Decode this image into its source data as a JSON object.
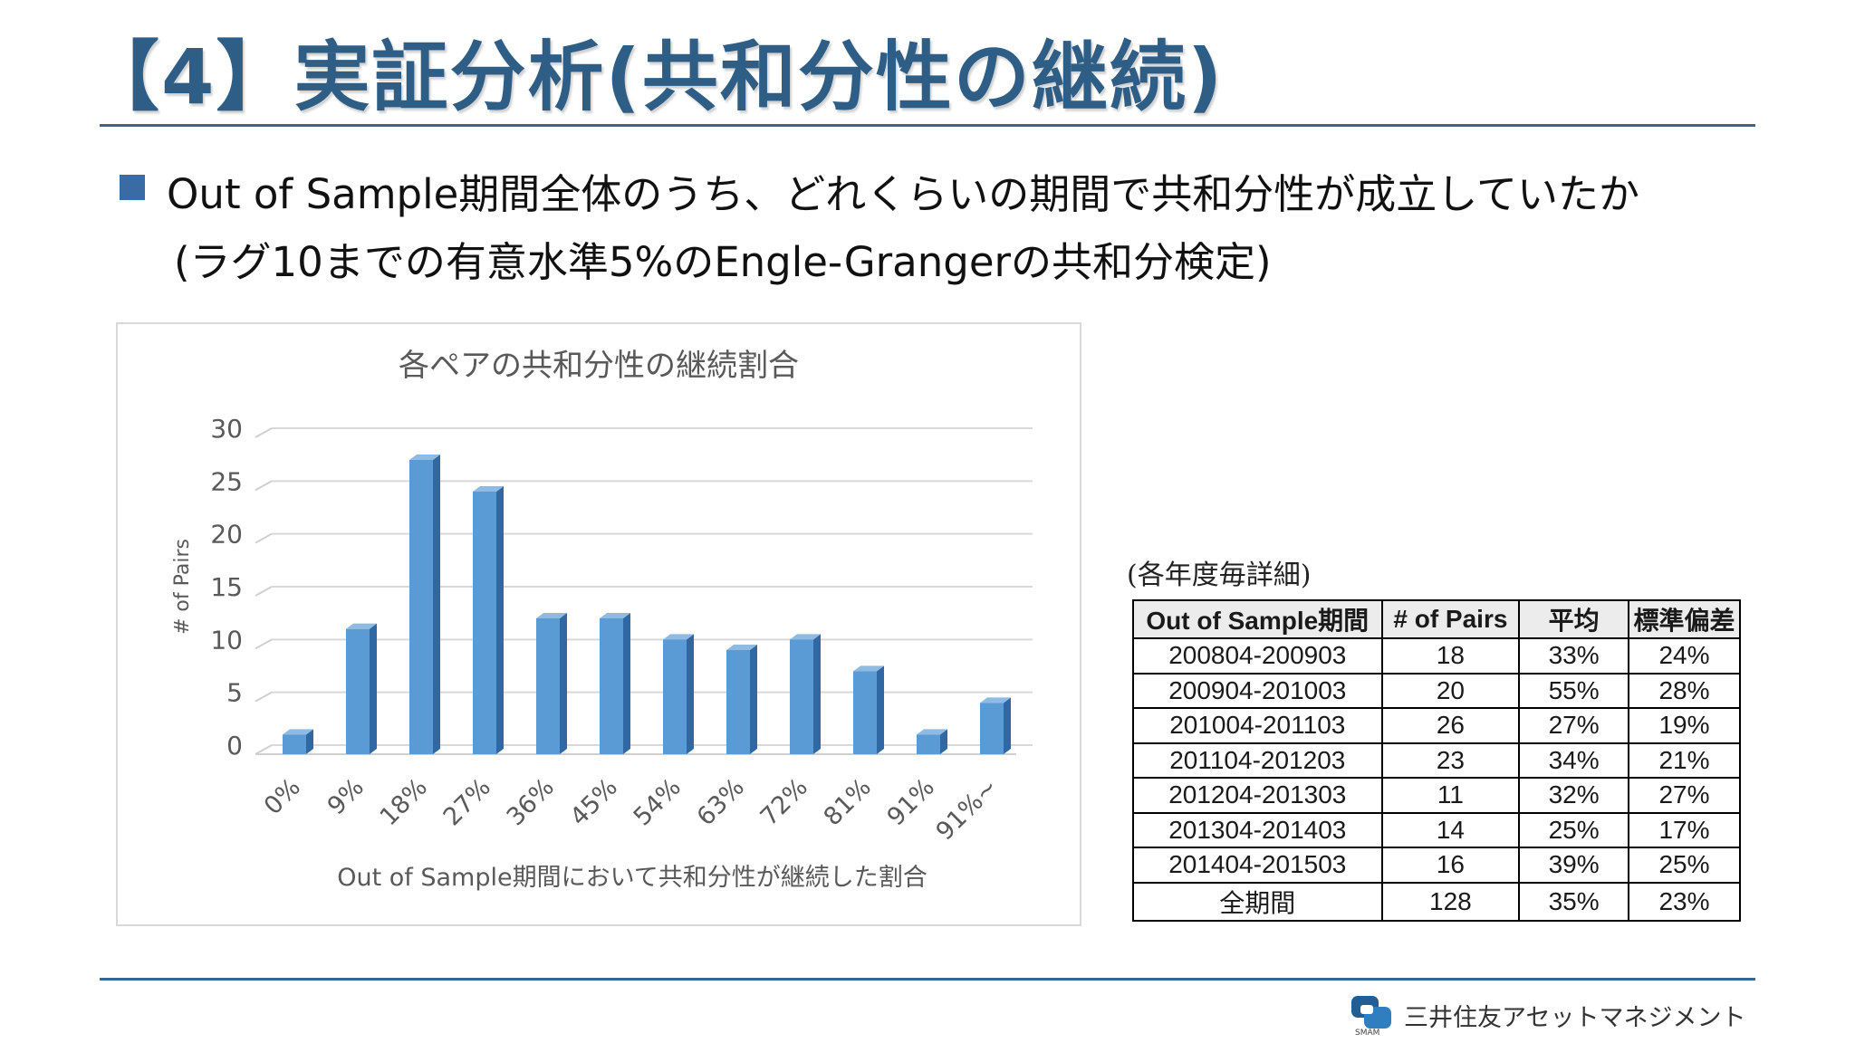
{
  "slide": {
    "title": "【4】実証分析(共和分性の継続)",
    "bullet_line1": "Out of Sample期間全体のうち、どれくらいの期間で共和分性が成立していたか",
    "bullet_line2": "(ラグ10までの有意水準5%のEngle-Grangerの共和分検定)",
    "accent_color": "#2e5d86"
  },
  "chart_data": {
    "type": "bar",
    "title": "各ペアの共和分性の継続割合",
    "xlabel": "Out of Sample期間において共和分性が継続した割合",
    "ylabel": "# of Pairs",
    "categories": [
      "0%",
      "9%",
      "18%",
      "27%",
      "36%",
      "45%",
      "54%",
      "63%",
      "72%",
      "81%",
      "91%",
      "91%~"
    ],
    "values": [
      1,
      11,
      27,
      24,
      12,
      12,
      10,
      9,
      10,
      7,
      1,
      4
    ],
    "ylim": [
      0,
      30
    ],
    "yticks": [
      0,
      5,
      10,
      15,
      20,
      25,
      30
    ],
    "grid": true,
    "bar_color": "#5b9bd5"
  },
  "table": {
    "caption": "(各年度毎詳細)",
    "headers": [
      "Out of Sample期間",
      "# of Pairs",
      "平均",
      "標準偏差"
    ],
    "rows": [
      [
        "200804-200903",
        "18",
        "33%",
        "24%"
      ],
      [
        "200904-201003",
        "20",
        "55%",
        "28%"
      ],
      [
        "201004-201103",
        "26",
        "27%",
        "19%"
      ],
      [
        "201104-201203",
        "23",
        "34%",
        "21%"
      ],
      [
        "201204-201303",
        "11",
        "32%",
        "27%"
      ],
      [
        "201304-201403",
        "14",
        "25%",
        "17%"
      ],
      [
        "201404-201503",
        "16",
        "39%",
        "25%"
      ],
      [
        "全期間",
        "128",
        "35%",
        "23%"
      ]
    ]
  },
  "footer": {
    "logo_text": "三井住友アセットマネジメント",
    "logo_sub": "SMAM"
  }
}
